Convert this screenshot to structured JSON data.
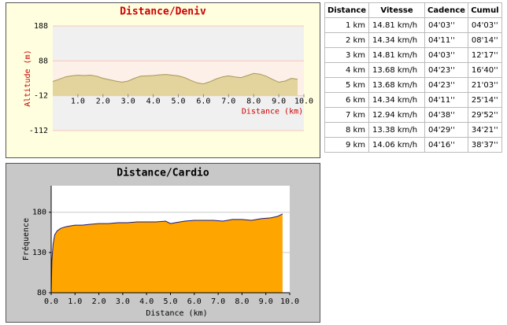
{
  "chart_data": [
    {
      "type": "area",
      "title": "Distance/Deniv",
      "ylabel": "Altitude (m)",
      "xlabel": "Distance (km)",
      "x": [
        0,
        0.25,
        0.5,
        0.75,
        1,
        1.25,
        1.5,
        1.75,
        2,
        2.25,
        2.5,
        2.75,
        3,
        3.25,
        3.5,
        3.75,
        4,
        4.25,
        4.5,
        4.75,
        5,
        5.25,
        5.5,
        5.75,
        6,
        6.25,
        6.5,
        6.75,
        7,
        7.25,
        7.5,
        7.75,
        8,
        8.25,
        8.5,
        8.75,
        9,
        9.25,
        9.5,
        9.75
      ],
      "values": [
        29,
        35,
        42,
        45,
        47,
        46,
        47,
        44,
        38,
        34,
        30,
        27,
        30,
        38,
        44,
        45,
        46,
        48,
        49,
        47,
        45,
        40,
        32,
        25,
        22,
        28,
        36,
        42,
        45,
        42,
        40,
        46,
        52,
        50,
        44,
        35,
        27,
        30,
        38,
        35
      ],
      "color": "#e2d49c",
      "line_color": "#a89858",
      "xlim": [
        0,
        10
      ],
      "ylim": [
        -112,
        188
      ],
      "yticks": [
        -112,
        -12,
        88,
        188
      ],
      "xticks": [
        {
          "value": 1,
          "label": "1.0"
        },
        {
          "value": 2,
          "label": "2.0"
        },
        {
          "value": 3,
          "label": "3.0"
        },
        {
          "value": 4,
          "label": "4.0"
        },
        {
          "value": 5,
          "label": "5.0"
        },
        {
          "value": 6,
          "label": "6.0"
        },
        {
          "value": 7,
          "label": "7.0"
        },
        {
          "value": 8,
          "label": "8.0"
        },
        {
          "value": 9,
          "label": "9.0"
        },
        {
          "value": 10,
          "label": "10.0"
        }
      ]
    },
    {
      "type": "area",
      "title": "Distance/Cardio",
      "ylabel": "Fréquence",
      "xlabel": "Distance (km)",
      "x": [
        0,
        0.03,
        0.08,
        0.15,
        0.25,
        0.4,
        0.6,
        0.8,
        1.0,
        1.3,
        1.6,
        2.0,
        2.4,
        2.8,
        3.2,
        3.6,
        4.0,
        4.4,
        4.8,
        5.0,
        5.2,
        5.6,
        6.0,
        6.4,
        6.8,
        7.2,
        7.6,
        8.0,
        8.4,
        8.8,
        9.2,
        9.5,
        9.7
      ],
      "values": [
        80,
        120,
        140,
        152,
        157,
        160,
        162,
        163,
        164,
        164,
        165,
        166,
        166,
        167,
        167,
        168,
        168,
        168,
        169,
        166,
        167,
        169,
        170,
        170,
        170,
        169,
        171,
        171,
        170,
        172,
        173,
        175,
        178
      ],
      "color": "#ffa500",
      "line_color": "#1a1a80",
      "xlim": [
        0,
        10
      ],
      "ylim": [
        80,
        213
      ],
      "yticks": [
        80,
        130,
        180
      ],
      "grid": true,
      "xticks": [
        {
          "value": 0,
          "label": "0.0"
        },
        {
          "value": 1,
          "label": "1.0"
        },
        {
          "value": 2,
          "label": "2.0"
        },
        {
          "value": 3,
          "label": "3.0"
        },
        {
          "value": 4,
          "label": "4.0"
        },
        {
          "value": 5,
          "label": "5.0"
        },
        {
          "value": 6,
          "label": "6.0"
        },
        {
          "value": 7,
          "label": "7.0"
        },
        {
          "value": 8,
          "label": "8.0"
        },
        {
          "value": 9,
          "label": "9.0"
        },
        {
          "value": 10,
          "label": "10.0"
        }
      ]
    }
  ],
  "table": {
    "header": [
      "Distance",
      "Vitesse",
      "Cadence",
      "Cumul"
    ],
    "rows": [
      [
        "1 km",
        "14.81 km/h",
        "04'03''",
        "04'03''"
      ],
      [
        "2 km",
        "14.34 km/h",
        "04'11''",
        "08'14''"
      ],
      [
        "3 km",
        "14.81 km/h",
        "04'03''",
        "12'17''"
      ],
      [
        "4 km",
        "13.68 km/h",
        "04'23''",
        "16'40''"
      ],
      [
        "5 km",
        "13.68 km/h",
        "04'23''",
        "21'03''"
      ],
      [
        "6 km",
        "14.34 km/h",
        "04'11''",
        "25'14''"
      ],
      [
        "7 km",
        "12.94 km/h",
        "04'38''",
        "29'52''"
      ],
      [
        "8 km",
        "13.38 km/h",
        "04'29''",
        "34'21''"
      ],
      [
        "9 km",
        "14.06 km/h",
        "04'16''",
        "38'37''"
      ]
    ]
  }
}
